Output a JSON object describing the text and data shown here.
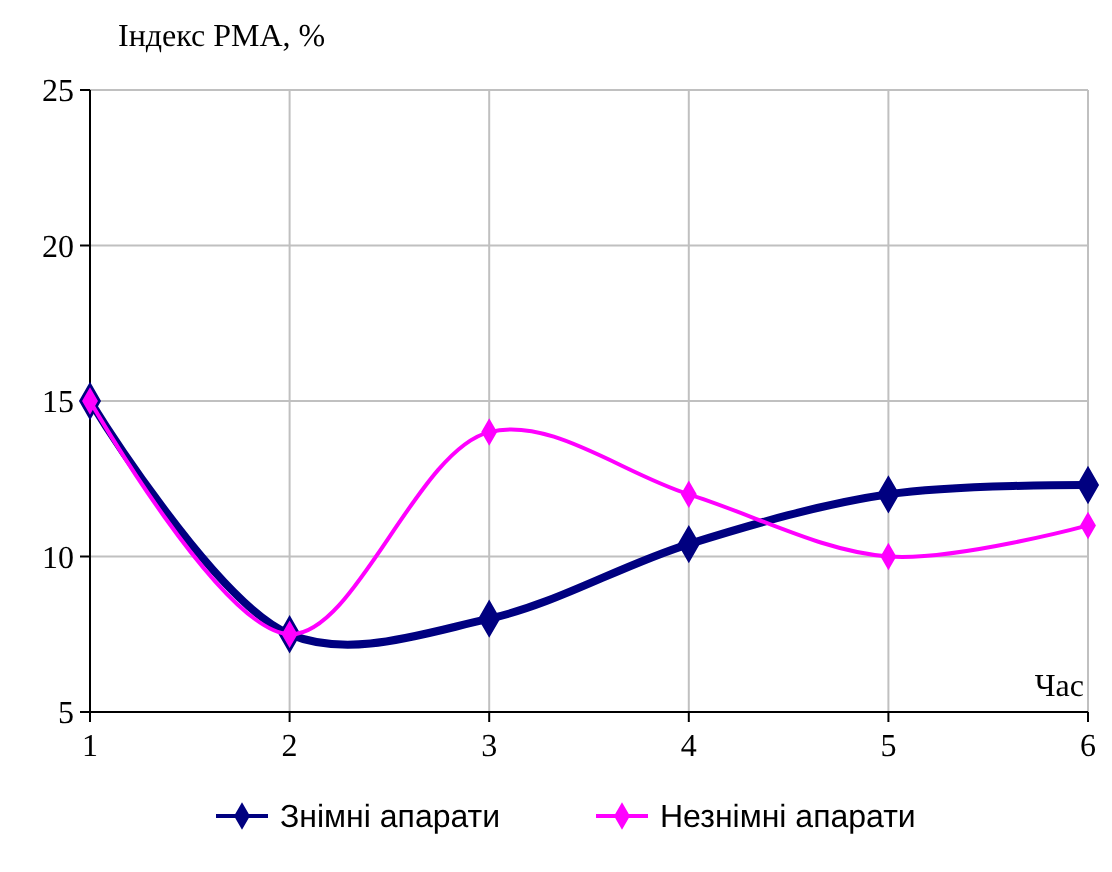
{
  "chart_data": {
    "type": "line",
    "ylabel": "Індекс РМА, %",
    "xlabel": "Час",
    "x": [
      1,
      2,
      3,
      4,
      5,
      6
    ],
    "xlim": [
      1,
      6
    ],
    "xticks": [
      1,
      2,
      3,
      4,
      5,
      6
    ],
    "ylim": [
      5,
      25
    ],
    "yticks": [
      5,
      10,
      15,
      20,
      25
    ],
    "grid": true,
    "legend": "bottom",
    "marker": "diamond",
    "line_style": "solid",
    "series": [
      {
        "name": "Знімні апарати",
        "color": "#000080",
        "values": [
          15,
          7.5,
          8,
          10.4,
          12,
          12.3
        ]
      },
      {
        "name": "Незнімні апарати",
        "color": "#ff00ff",
        "values": [
          15,
          7.5,
          14,
          12,
          10,
          11
        ]
      }
    ]
  }
}
